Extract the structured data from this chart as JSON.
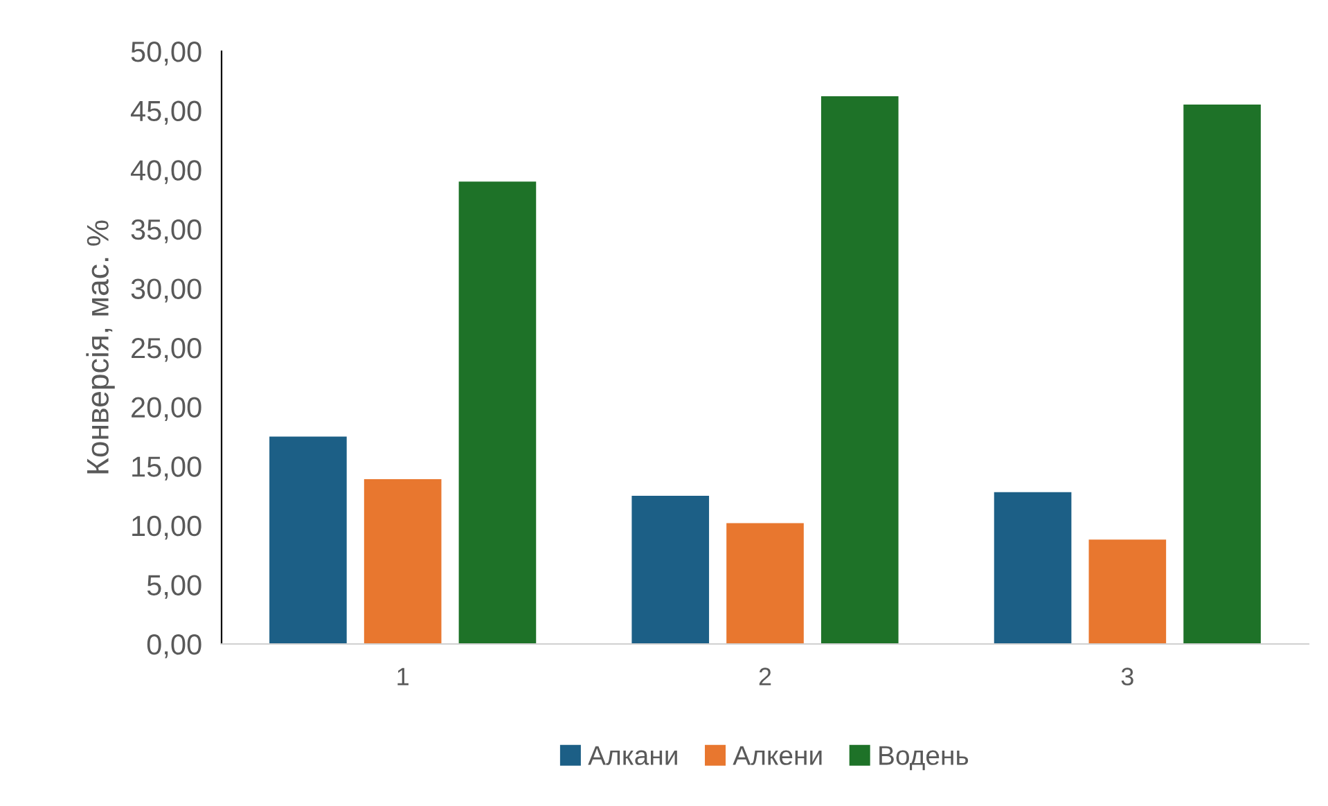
{
  "chart_data": {
    "type": "bar",
    "ylabel": "Конверсія, мас. %",
    "categories": [
      "1",
      "2",
      "3"
    ],
    "series": [
      {
        "name": "Алкани",
        "color": "#1c5f86",
        "values": [
          17.5,
          12.5,
          12.8
        ]
      },
      {
        "name": "Алкени",
        "color": "#e8772f",
        "values": [
          13.9,
          10.2,
          8.8
        ]
      },
      {
        "name": "Водень",
        "color": "#1e7228",
        "values": [
          39.0,
          46.2,
          45.5
        ]
      }
    ],
    "ylim": [
      0,
      50
    ],
    "yticks": [
      {
        "value": 0,
        "label": "0,00"
      },
      {
        "value": 5,
        "label": "5,00"
      },
      {
        "value": 10,
        "label": "10,00"
      },
      {
        "value": 15,
        "label": "15,00"
      },
      {
        "value": 20,
        "label": "20,00"
      },
      {
        "value": 25,
        "label": "25,00"
      },
      {
        "value": 30,
        "label": "30,00"
      },
      {
        "value": 35,
        "label": "35,00"
      },
      {
        "value": 40,
        "label": "40,00"
      },
      {
        "value": 45,
        "label": "45,00"
      },
      {
        "value": 50,
        "label": "50,00"
      }
    ],
    "grid": false,
    "legend": "bottom"
  }
}
